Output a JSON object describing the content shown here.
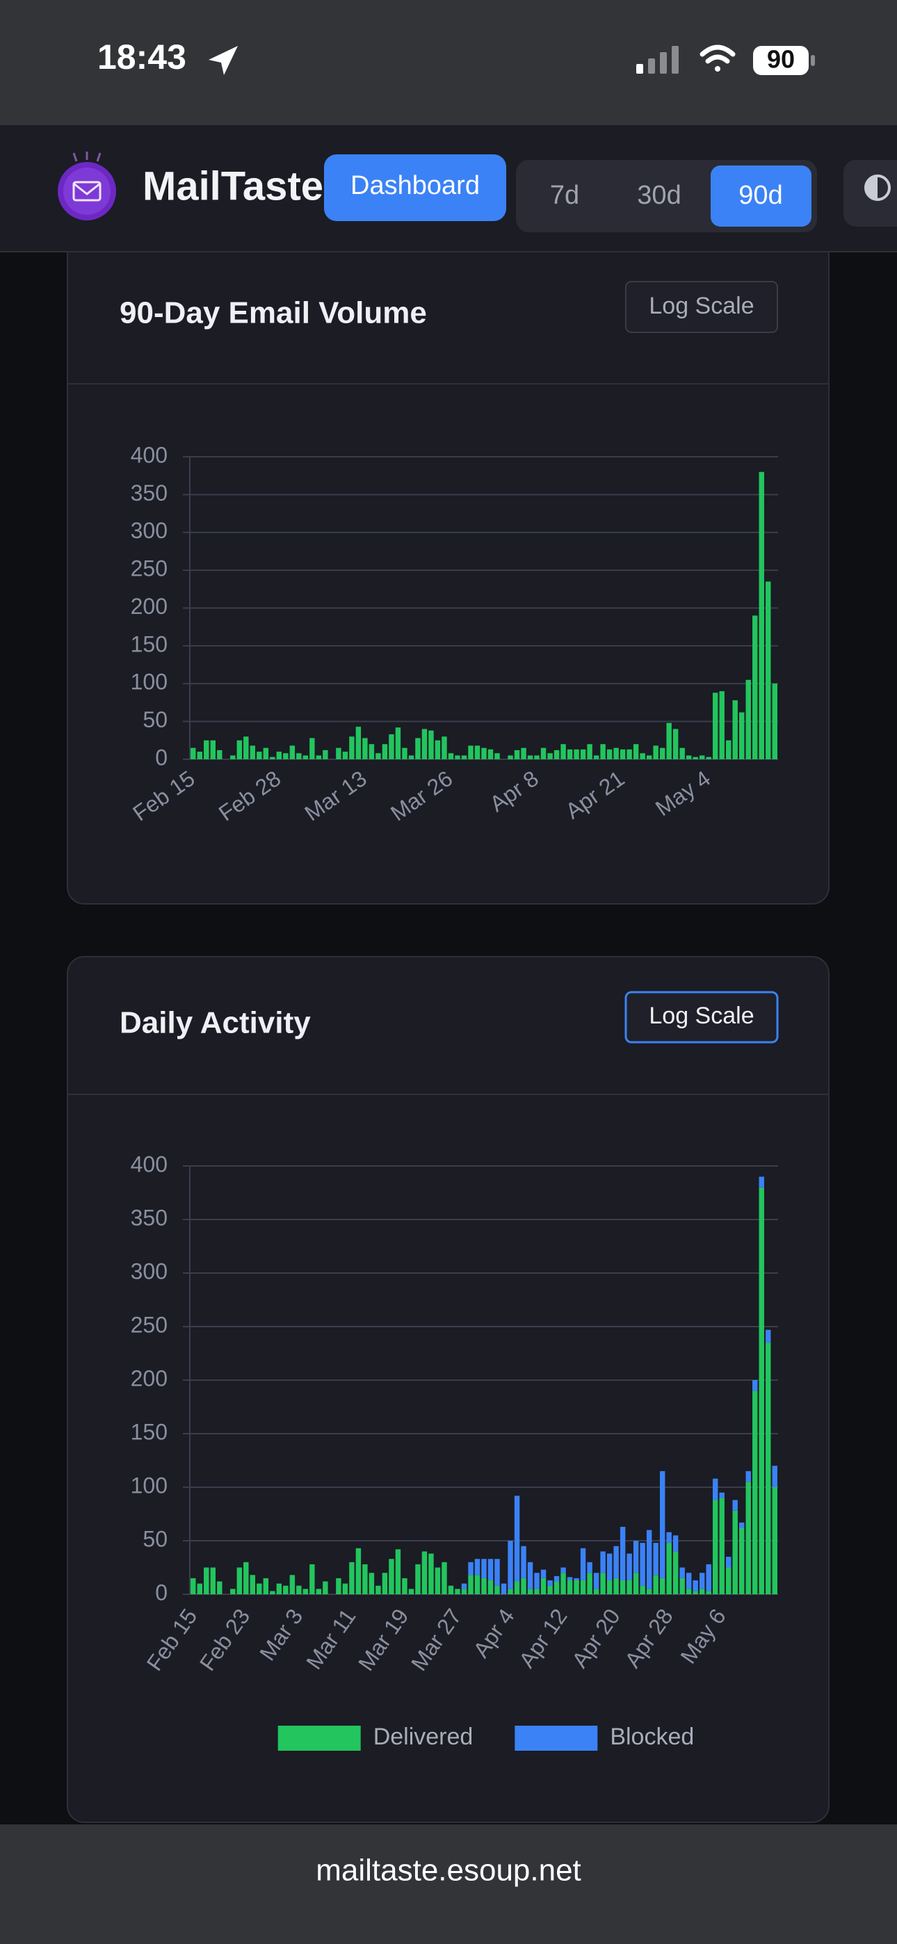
{
  "status_bar": {
    "time": "18:43",
    "battery": "90"
  },
  "header": {
    "brand": "MailTaste",
    "nav_button": "Dashboard",
    "ranges": [
      "7d",
      "30d",
      "90d"
    ]
  },
  "chart_data": [
    {
      "type": "bar",
      "title": "90-Day Email Volume",
      "toggle": "Log Scale",
      "categories": [
        "Feb 15",
        null,
        null,
        null,
        null,
        null,
        null,
        null,
        null,
        null,
        null,
        null,
        null,
        "Feb 28",
        null,
        null,
        null,
        null,
        null,
        null,
        null,
        null,
        null,
        null,
        null,
        null,
        "Mar 13",
        null,
        null,
        null,
        null,
        null,
        null,
        null,
        null,
        null,
        null,
        null,
        null,
        "Mar 26",
        null,
        null,
        null,
        null,
        null,
        null,
        null,
        null,
        null,
        null,
        null,
        null,
        "Apr 8",
        null,
        null,
        null,
        null,
        null,
        null,
        null,
        null,
        null,
        null,
        null,
        null,
        "Apr 21",
        null,
        null,
        null,
        null,
        null,
        null,
        null,
        null,
        null,
        null,
        null,
        null,
        "May 4",
        null,
        null,
        null,
        null,
        null,
        null,
        null,
        null,
        null,
        null
      ],
      "values": [
        15,
        10,
        25,
        25,
        12,
        0,
        5,
        25,
        30,
        18,
        10,
        15,
        3,
        10,
        8,
        18,
        8,
        5,
        28,
        5,
        12,
        0,
        15,
        10,
        30,
        43,
        28,
        20,
        8,
        20,
        33,
        42,
        15,
        5,
        28,
        40,
        38,
        25,
        30,
        8,
        5,
        5,
        18,
        18,
        15,
        13,
        8,
        0,
        5,
        12,
        15,
        5,
        5,
        15,
        8,
        12,
        20,
        13,
        13,
        13,
        20,
        5,
        20,
        13,
        15,
        13,
        13,
        20,
        8,
        5,
        18,
        15,
        48,
        40,
        15,
        5,
        3,
        5,
        3,
        88,
        90,
        25,
        78,
        62,
        105,
        190,
        380,
        235,
        100
      ],
      "color": "#22c55e",
      "ylim": [
        0,
        400
      ],
      "yticks": [
        0,
        50,
        100,
        150,
        200,
        250,
        300,
        350,
        400
      ],
      "grid": true,
      "log_scale": false
    },
    {
      "type": "stacked_bar",
      "title": "Daily Activity",
      "toggle": "Log Scale",
      "categories": [
        "Feb 15",
        null,
        null,
        null,
        null,
        null,
        null,
        null,
        "Feb 23",
        null,
        null,
        null,
        null,
        null,
        null,
        null,
        "Mar 3",
        null,
        null,
        null,
        null,
        null,
        null,
        null,
        "Mar 11",
        null,
        null,
        null,
        null,
        null,
        null,
        null,
        "Mar 19",
        null,
        null,
        null,
        null,
        null,
        null,
        null,
        "Mar 27",
        null,
        null,
        null,
        null,
        null,
        null,
        null,
        "Apr 4",
        null,
        null,
        null,
        null,
        null,
        null,
        null,
        "Apr 12",
        null,
        null,
        null,
        null,
        null,
        null,
        null,
        "Apr 20",
        null,
        null,
        null,
        null,
        null,
        null,
        null,
        "Apr 28",
        null,
        null,
        null,
        null,
        null,
        null,
        null,
        "May 6",
        null,
        null,
        null,
        null,
        null,
        null,
        null,
        null
      ],
      "series": [
        {
          "name": "Delivered",
          "color": "#22c55e",
          "values": [
            15,
            10,
            25,
            25,
            12,
            0,
            5,
            25,
            30,
            18,
            10,
            15,
            3,
            10,
            8,
            18,
            8,
            5,
            28,
            5,
            12,
            0,
            15,
            10,
            30,
            43,
            28,
            20,
            8,
            20,
            33,
            42,
            15,
            5,
            28,
            40,
            38,
            25,
            30,
            8,
            5,
            5,
            18,
            18,
            15,
            13,
            8,
            0,
            5,
            12,
            15,
            5,
            5,
            15,
            8,
            12,
            20,
            13,
            13,
            13,
            20,
            5,
            20,
            13,
            15,
            13,
            13,
            20,
            8,
            5,
            18,
            15,
            48,
            40,
            15,
            5,
            3,
            5,
            3,
            88,
            90,
            25,
            78,
            62,
            105,
            190,
            380,
            235,
            100
          ]
        },
        {
          "name": "Blocked",
          "color": "#3b82f6",
          "values": [
            0,
            0,
            0,
            0,
            0,
            0,
            0,
            0,
            0,
            0,
            0,
            0,
            0,
            0,
            0,
            0,
            0,
            0,
            0,
            0,
            0,
            0,
            0,
            0,
            0,
            0,
            0,
            0,
            0,
            0,
            0,
            0,
            0,
            0,
            0,
            0,
            0,
            0,
            0,
            0,
            0,
            5,
            12,
            15,
            18,
            20,
            25,
            10,
            45,
            80,
            30,
            25,
            15,
            8,
            5,
            5,
            5,
            3,
            2,
            30,
            10,
            15,
            20,
            25,
            30,
            50,
            25,
            30,
            40,
            55,
            30,
            100,
            10,
            15,
            10,
            15,
            10,
            15,
            25,
            20,
            5,
            10,
            10,
            5,
            10,
            10,
            10,
            12,
            20
          ]
        }
      ],
      "ylim": [
        0,
        400
      ],
      "yticks": [
        0,
        50,
        100,
        150,
        200,
        250,
        300,
        350,
        400
      ],
      "grid": true,
      "log_scale": false,
      "legend": "bottom"
    }
  ],
  "footer": {
    "url": "mailtaste.esoup.net"
  }
}
